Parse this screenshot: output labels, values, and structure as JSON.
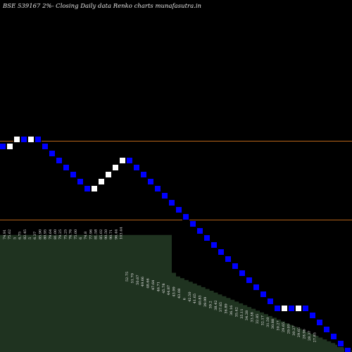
{
  "chart_data": {
    "type": "renko",
    "title": "BSE 539167 2%-  Closing Daily data  Renko  charts munafasutra.in",
    "colors": {
      "background": "#000000",
      "up_brick": "#ffffff",
      "down_brick": "#0000ff",
      "brick_border": "#000000",
      "volume_area": "#1f3320",
      "grid_line": "#b8651a"
    },
    "reference_lines": [
      {
        "id": "upper"
      },
      {
        "id": "lower"
      }
    ],
    "bricks": [
      "down",
      "up",
      "up",
      "down",
      "up",
      "down",
      "down",
      "down",
      "down",
      "down",
      "down",
      "down",
      "down",
      "up",
      "up",
      "up",
      "up",
      "up",
      "down",
      "down",
      "down",
      "down",
      "down",
      "down",
      "down",
      "down",
      "down",
      "down",
      "down",
      "down",
      "down",
      "down",
      "down",
      "down",
      "down",
      "down",
      "down",
      "down",
      "down",
      "down",
      "up",
      "down",
      "up",
      "down",
      "down",
      "down",
      "down",
      "down",
      "down",
      "down",
      "down",
      "up",
      "up",
      "up",
      "down",
      "down",
      "down"
    ],
    "price_labels_top": [
      "74.91",
      "75.62",
      "5",
      "6.75",
      "82.45",
      "5",
      "6.37",
      "85.90",
      "80.95",
      "79.64",
      "81.00",
      "79.25",
      "75.25",
      "76.76",
      "75.00",
      "6",
      "74.8",
      "77.96",
      "81.58",
      "85.02",
      "90.50",
      "90.71",
      "96.44",
      "103.44"
    ],
    "price_labels_lower": [
      "52.75",
      "51.70",
      "50.67",
      "49.66",
      "48.66",
      "47.64",
      "46.71",
      "45.78",
      "44.87",
      "43.99",
      "43.08",
      "6",
      "42.50",
      "41.65",
      "40.83",
      "39.99",
      "39.2",
      "38.42",
      "37.65",
      "36.89",
      "36.16",
      "35.42",
      "35.11",
      "34.28",
      "33.58",
      "32.85",
      "32.17",
      "31.50",
      "30.88",
      "30.27",
      "29.65",
      "29.05",
      "30.27",
      "29.65",
      "28.96",
      "28.37",
      "27.85"
    ],
    "volume": [
      0.65,
      0.65,
      0.65,
      0.65,
      0.65,
      0.65,
      0.65,
      0.65,
      0.65,
      0.65,
      0.65,
      0.65,
      0.65,
      0.65,
      0.65,
      0.65,
      0.65,
      0.65,
      0.65,
      0.65,
      0.65,
      0.65,
      0.65,
      0.65,
      0.65,
      0.65,
      0.65,
      0.65,
      0.65,
      0.65,
      0.65,
      0.65,
      0.65,
      0.65,
      0.65,
      0.65,
      0.65,
      0.65,
      0.65,
      0.65,
      0.65,
      0.44,
      0.42,
      0.41,
      0.4,
      0.39,
      0.38,
      0.37,
      0.36,
      0.35,
      0.34,
      0.33,
      0.32,
      0.31,
      0.3,
      0.29,
      0.28,
      0.27,
      0.26,
      0.25,
      0.24,
      0.23,
      0.22,
      0.21,
      0.2,
      0.19,
      0.18,
      0.17,
      0.16,
      0.15,
      0.14,
      0.13,
      0.12,
      0.11,
      0.1,
      0.09,
      0.08,
      0.07,
      0.06,
      0.05,
      0.04,
      0.03,
      0.02,
      0.01
    ]
  }
}
